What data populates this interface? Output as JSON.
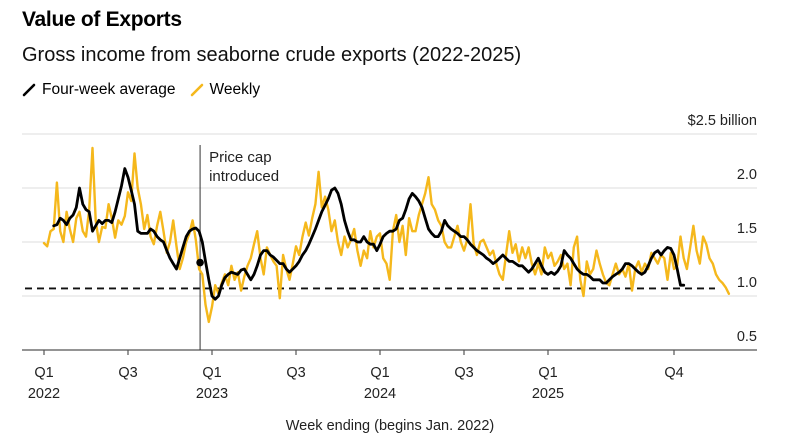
{
  "title": "Value of Exports",
  "subtitle": "Gross income from seaborne crude exports (2022-2025)",
  "legend": [
    {
      "label": "Four-week average",
      "color": "#000000"
    },
    {
      "label": "Weekly",
      "color": "#F5B81C"
    }
  ],
  "chart_data": {
    "type": "line",
    "title": "Value of Exports",
    "subtitle": "Gross income from seaborne crude exports (2022-2025)",
    "xlabel": "Week ending (begins Jan. 2022)",
    "ylabel": "$ billion",
    "ylim": [
      0.5,
      2.5
    ],
    "yticks": [
      {
        "value": 2.5,
        "label": "$2.5 billion"
      },
      {
        "value": 2.0,
        "label": "2.0"
      },
      {
        "value": 1.5,
        "label": "1.5"
      },
      {
        "value": 1.0,
        "label": "1.0"
      },
      {
        "value": 0.5,
        "label": "0.5"
      }
    ],
    "xticks": [
      {
        "week": 0,
        "label": "Q1",
        "sublabel": "2022"
      },
      {
        "week": 26,
        "label": "Q3",
        "sublabel": ""
      },
      {
        "week": 52,
        "label": "Q1",
        "sublabel": "2023"
      },
      {
        "week": 78,
        "label": "Q3",
        "sublabel": ""
      },
      {
        "week": 104,
        "label": "Q1",
        "sublabel": "2024"
      },
      {
        "week": 130,
        "label": "Q3",
        "sublabel": ""
      },
      {
        "week": 156,
        "label": "Q1",
        "sublabel": "2025"
      },
      {
        "week": 195,
        "label": "Q4",
        "sublabel": ""
      }
    ],
    "xlim_weeks": [
      0,
      220
    ],
    "grid": true,
    "legend_position": "top-left",
    "reference_line": {
      "value": 1.07,
      "style": "dashed"
    },
    "annotation": {
      "week": 48,
      "label_line1": "Price cap",
      "label_line2": "introduced",
      "marker_value": 1.31
    },
    "series": [
      {
        "name": "Weekly",
        "color": "#F5B81C",
        "start_week": 0,
        "values": [
          1.49,
          1.46,
          1.6,
          1.62,
          2.05,
          1.6,
          1.5,
          1.78,
          1.62,
          1.5,
          1.72,
          1.78,
          1.6,
          1.55,
          1.8,
          2.37,
          1.7,
          1.5,
          1.64,
          1.63,
          1.85,
          1.72,
          1.54,
          1.7,
          1.66,
          1.74,
          1.96,
          1.88,
          2.32,
          2.0,
          1.85,
          1.62,
          1.75,
          1.55,
          1.48,
          1.65,
          1.78,
          1.6,
          1.4,
          1.5,
          1.7,
          1.46,
          1.25,
          1.35,
          1.5,
          1.58,
          1.7,
          1.52,
          1.25,
          1.2,
          0.92,
          0.76,
          0.9,
          1.1,
          1.02,
          1.12,
          1.2,
          1.1,
          1.28,
          1.15,
          1.22,
          1.05,
          1.18,
          1.28,
          1.35,
          1.48,
          1.6,
          1.35,
          1.2,
          1.45,
          1.38,
          1.32,
          1.28,
          0.98,
          1.38,
          1.25,
          1.15,
          1.3,
          1.46,
          1.38,
          1.55,
          1.68,
          1.56,
          1.72,
          1.85,
          2.15,
          1.82,
          1.92,
          1.8,
          1.6,
          1.7,
          1.5,
          1.38,
          1.55,
          1.45,
          1.52,
          1.62,
          1.42,
          1.28,
          1.42,
          1.35,
          1.6,
          1.45,
          1.55,
          1.58,
          1.35,
          1.3,
          1.15,
          1.6,
          1.75,
          1.5,
          1.65,
          1.38,
          1.72,
          1.6,
          1.6,
          1.75,
          1.85,
          1.95,
          2.1,
          1.85,
          1.8,
          1.7,
          1.65,
          1.5,
          1.45,
          1.45,
          1.55,
          1.65,
          1.5,
          1.42,
          1.52,
          1.85,
          1.48,
          1.38,
          1.5,
          1.52,
          1.45,
          1.38,
          1.42,
          1.3,
          1.2,
          1.15,
          1.38,
          1.6,
          1.4,
          1.48,
          1.32,
          1.45,
          1.35,
          1.45,
          1.3,
          1.2,
          1.3,
          1.2,
          1.45,
          1.35,
          1.4,
          1.28,
          1.32,
          1.38,
          1.25,
          1.3,
          1.1,
          1.45,
          1.55,
          1.15,
          1.0,
          1.32,
          1.2,
          1.25,
          1.42,
          1.3,
          1.2,
          1.12,
          1.1,
          1.2,
          1.3,
          1.2,
          1.25,
          1.18,
          1.3,
          1.05,
          1.25,
          1.32,
          1.22,
          1.3,
          1.25,
          1.4,
          1.35,
          1.3,
          1.38,
          1.35,
          1.15,
          1.4,
          1.25,
          1.28,
          1.55,
          1.35,
          1.25,
          1.45,
          1.65,
          1.42,
          1.3,
          1.55,
          1.48,
          1.35,
          1.3,
          1.2,
          1.15,
          1.12,
          1.08,
          1.02
        ],
        "note": "Weekly values estimated from the plotted line"
      },
      {
        "name": "Four-week average",
        "color": "#000000",
        "start_week": 3,
        "values": [
          1.65,
          1.66,
          1.72,
          1.7,
          1.66,
          1.72,
          1.75,
          1.82,
          2.0,
          1.85,
          1.8,
          1.78,
          1.6,
          1.65,
          1.7,
          1.67,
          1.7,
          1.7,
          1.68,
          1.78,
          1.9,
          2.02,
          2.18,
          2.1,
          1.98,
          1.85,
          1.6,
          1.58,
          1.58,
          1.58,
          1.62,
          1.6,
          1.55,
          1.52,
          1.5,
          1.42,
          1.35,
          1.3,
          1.25,
          1.35,
          1.45,
          1.55,
          1.6,
          1.62,
          1.63,
          1.6,
          1.5,
          1.32,
          1.15,
          1.0,
          0.97,
          1.0,
          1.1,
          1.17,
          1.2,
          1.22,
          1.21,
          1.2,
          1.24,
          1.25,
          1.2,
          1.15,
          1.2,
          1.28,
          1.38,
          1.42,
          1.42,
          1.38,
          1.36,
          1.33,
          1.3,
          1.3,
          1.25,
          1.22,
          1.25,
          1.28,
          1.32,
          1.38,
          1.42,
          1.48,
          1.55,
          1.62,
          1.7,
          1.78,
          1.84,
          1.9,
          1.98,
          2.0,
          1.95,
          1.85,
          1.7,
          1.6,
          1.52,
          1.52,
          1.5,
          1.5,
          1.55,
          1.5,
          1.48,
          1.48,
          1.42,
          1.48,
          1.55,
          1.58,
          1.6,
          1.6,
          1.62,
          1.7,
          1.72,
          1.8,
          1.9,
          1.95,
          1.92,
          1.88,
          1.82,
          1.72,
          1.62,
          1.58,
          1.55,
          1.55,
          1.6,
          1.7,
          1.65,
          1.62,
          1.6,
          1.58,
          1.55,
          1.55,
          1.52,
          1.48,
          1.45,
          1.42,
          1.4,
          1.38,
          1.35,
          1.33,
          1.3,
          1.32,
          1.35,
          1.38,
          1.35,
          1.32,
          1.32,
          1.3,
          1.28,
          1.28,
          1.25,
          1.22,
          1.25,
          1.3,
          1.35,
          1.28,
          1.22,
          1.2,
          1.22,
          1.2,
          1.23,
          1.28,
          1.42,
          1.38,
          1.35,
          1.3,
          1.25,
          1.22,
          1.2,
          1.2,
          1.18,
          1.15,
          1.15,
          1.15,
          1.12,
          1.12,
          1.15,
          1.18,
          1.2,
          1.22,
          1.25,
          1.3,
          1.3,
          1.28,
          1.25,
          1.22,
          1.2,
          1.22,
          1.28,
          1.35,
          1.4,
          1.42,
          1.38,
          1.42,
          1.45,
          1.44,
          1.38,
          1.25,
          1.1,
          1.1
        ],
        "note": "Four-week average estimated from the plotted line"
      }
    ]
  }
}
